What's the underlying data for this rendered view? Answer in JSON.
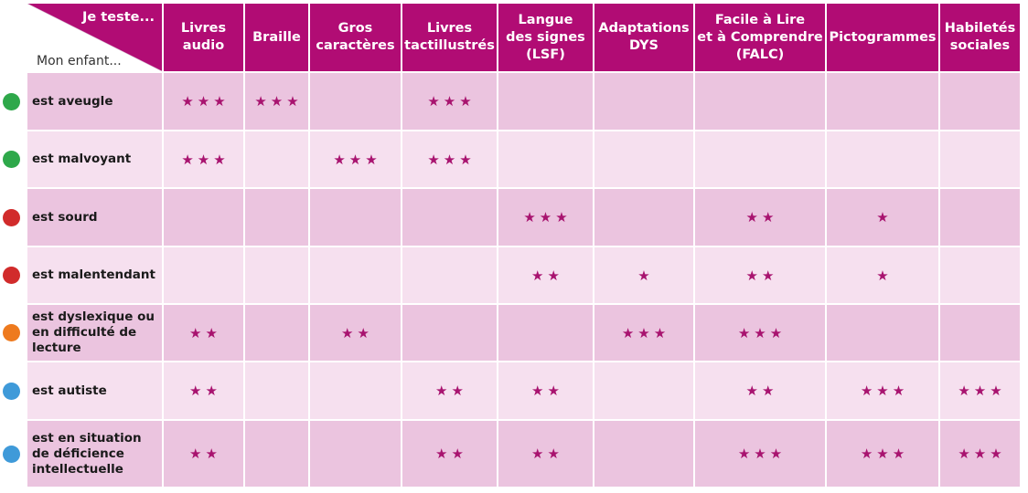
{
  "corner": {
    "top_label": "Je teste...",
    "bottom_label": "Mon enfant..."
  },
  "columns": [
    "Livres\naudio",
    "Braille",
    "Gros\ncaractères",
    "Livres\ntactillustrés",
    "Langue\ndes signes\n(LSF)",
    "Adaptations\nDYS",
    "Facile à Lire\net à Comprendre\n(FALC)",
    "Pictogrammes",
    "Habiletés\nsociales"
  ],
  "rows": [
    {
      "label": "est aveugle",
      "dot_color": "#2ea84a",
      "ratings": [
        3,
        3,
        0,
        3,
        0,
        0,
        0,
        0,
        0
      ]
    },
    {
      "label": "est malvoyant",
      "dot_color": "#2ea84a",
      "ratings": [
        3,
        0,
        3,
        3,
        0,
        0,
        0,
        0,
        0
      ]
    },
    {
      "label": "est sourd",
      "dot_color": "#d12b2b",
      "ratings": [
        0,
        0,
        0,
        0,
        3,
        0,
        2,
        1,
        0
      ]
    },
    {
      "label": "est malentendant",
      "dot_color": "#d12b2b",
      "ratings": [
        0,
        0,
        0,
        0,
        2,
        1,
        2,
        1,
        0
      ]
    },
    {
      "label": "est dyslexique ou\nen difficulté de\nlecture",
      "dot_color": "#ee7a1e",
      "ratings": [
        2,
        0,
        2,
        0,
        0,
        3,
        3,
        0,
        0
      ]
    },
    {
      "label": "est autiste",
      "dot_color": "#3f9ad9",
      "ratings": [
        2,
        0,
        0,
        2,
        2,
        0,
        2,
        3,
        3
      ]
    },
    {
      "label": "est en situation\nde déficience\nintellectuelle",
      "dot_color": "#3f9ad9",
      "ratings": [
        2,
        0,
        0,
        2,
        2,
        0,
        3,
        3,
        3
      ]
    }
  ],
  "colors": {
    "header_bg": "#b10c74",
    "row_dark": "#ebc4df",
    "row_light": "#f6e0ef",
    "star": "#a8136f"
  },
  "star_glyph": "★"
}
